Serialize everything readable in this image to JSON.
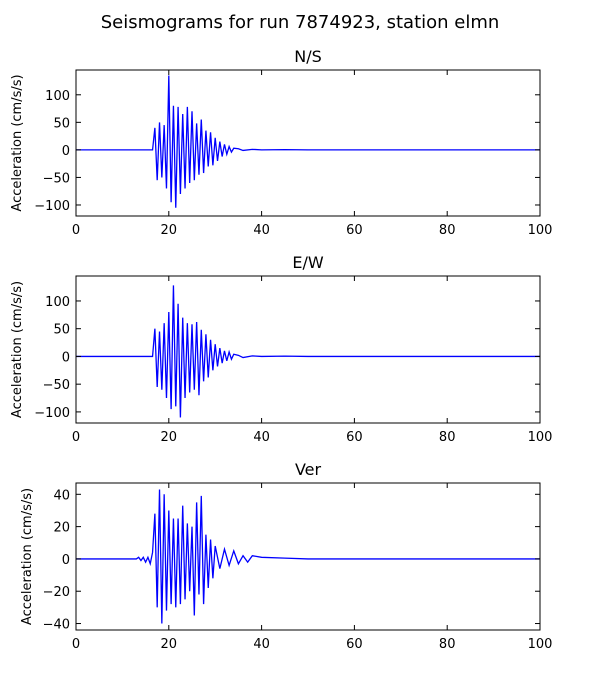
{
  "figure": {
    "title": "Seismograms for run 7874923, station elmn",
    "line_color": "#0000ff"
  },
  "chart_data": [
    {
      "type": "line",
      "title": "N/S",
      "xlabel": "",
      "ylabel": "Acceleration (cm/s/s)",
      "xlim": [
        0,
        100
      ],
      "ylim": [
        -120,
        145
      ],
      "xticks": [
        0,
        20,
        40,
        60,
        80,
        100
      ],
      "yticks": [
        -100,
        -50,
        0,
        50,
        100
      ],
      "series": [
        {
          "color": "#0000ff",
          "x": [
            0,
            16.5,
            17,
            17.5,
            18,
            18.5,
            19,
            19.5,
            20,
            20.5,
            21,
            21.5,
            22,
            22.5,
            23,
            23.5,
            24,
            24.5,
            25,
            25.5,
            26,
            26.5,
            27,
            27.5,
            28,
            28.5,
            29,
            29.5,
            30,
            30.5,
            31,
            31.5,
            32,
            32.5,
            33,
            33.5,
            34,
            35,
            36,
            38,
            40,
            45,
            50,
            100
          ],
          "y": [
            0,
            0,
            40,
            -55,
            50,
            -50,
            45,
            -70,
            135,
            -95,
            80,
            -105,
            78,
            -80,
            65,
            -70,
            78,
            -60,
            70,
            -55,
            48,
            -45,
            55,
            -42,
            35,
            -30,
            32,
            -28,
            22,
            -20,
            15,
            -12,
            10,
            -8,
            6,
            -4,
            3,
            2,
            -1,
            1,
            0,
            0.5,
            0,
            0
          ]
        }
      ]
    },
    {
      "type": "line",
      "title": "E/W",
      "xlabel": "",
      "ylabel": "Acceleration (cm/s/s)",
      "xlim": [
        0,
        100
      ],
      "ylim": [
        -120,
        145
      ],
      "xticks": [
        0,
        20,
        40,
        60,
        80,
        100
      ],
      "yticks": [
        -100,
        -50,
        0,
        50,
        100
      ],
      "series": [
        {
          "color": "#0000ff",
          "x": [
            0,
            16.5,
            17,
            17.5,
            18,
            18.5,
            19,
            19.5,
            20,
            20.5,
            21,
            21.5,
            22,
            22.5,
            23,
            23.5,
            24,
            24.5,
            25,
            25.5,
            26,
            26.5,
            27,
            27.5,
            28,
            28.5,
            29,
            29.5,
            30,
            30.5,
            31,
            31.5,
            32,
            32.5,
            33,
            33.5,
            34,
            35,
            36,
            38,
            40,
            45,
            50,
            100
          ],
          "y": [
            0,
            0,
            50,
            -55,
            45,
            -60,
            60,
            -75,
            80,
            -95,
            128,
            -90,
            95,
            -110,
            70,
            -75,
            60,
            -65,
            58,
            -60,
            62,
            -70,
            48,
            -45,
            40,
            -38,
            30,
            -25,
            22,
            -18,
            15,
            -12,
            10,
            -8,
            8,
            -5,
            4,
            2,
            -2,
            1,
            0,
            0.5,
            0,
            0
          ]
        }
      ]
    },
    {
      "type": "line",
      "title": "Ver",
      "xlabel": "",
      "ylabel": "Acceleration (cm/s/s)",
      "xlim": [
        0,
        100
      ],
      "ylim": [
        -44,
        47
      ],
      "xticks": [
        0,
        20,
        40,
        60,
        80,
        100
      ],
      "yticks": [
        -40,
        -20,
        0,
        20,
        40
      ],
      "series": [
        {
          "color": "#0000ff",
          "x": [
            0,
            13,
            13.5,
            14,
            14.5,
            15,
            15.5,
            16,
            16.5,
            17,
            17.5,
            18,
            18.5,
            19,
            19.5,
            20,
            20.5,
            21,
            21.5,
            22,
            22.5,
            23,
            23.5,
            24,
            24.5,
            25,
            25.5,
            26,
            26.5,
            27,
            27.5,
            28,
            28.5,
            29,
            29.5,
            30,
            31,
            32,
            33,
            34,
            35,
            36,
            37,
            38,
            40,
            45,
            50,
            100
          ],
          "y": [
            0,
            0,
            1,
            -1,
            1,
            -2,
            1,
            -3,
            4,
            28,
            -30,
            43,
            -40,
            40,
            -32,
            30,
            -28,
            25,
            -30,
            25,
            -28,
            33,
            -25,
            22,
            -20,
            20,
            -35,
            35,
            -22,
            39,
            -28,
            15,
            -18,
            12,
            -12,
            8,
            -6,
            6,
            -4,
            5,
            -3,
            2,
            -2,
            2,
            1,
            0.5,
            0,
            0
          ]
        }
      ]
    }
  ]
}
